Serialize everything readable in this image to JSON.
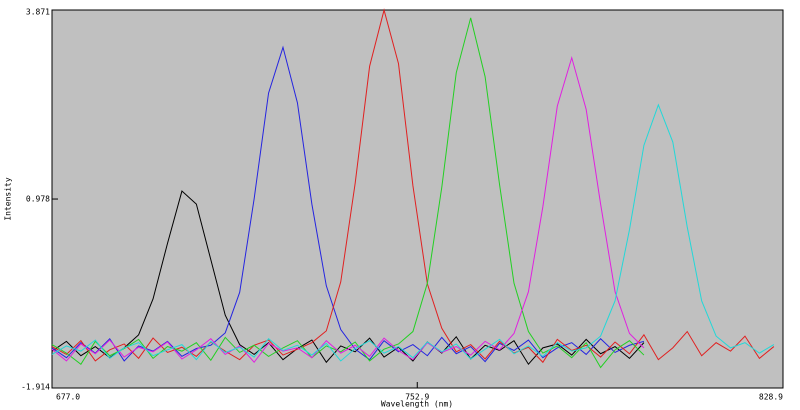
{
  "chart_data": {
    "type": "line",
    "xlabel": "Wavelength (nm)",
    "ylabel": "Intensity",
    "xlim": [
      677.0,
      828.9
    ],
    "ylim": [
      -1.914,
      3.871
    ],
    "xticks": [
      {
        "value": 677.0,
        "label": "677.0"
      },
      752.9,
      828.9
    ],
    "yticks": [
      -1.914,
      0.978,
      3.871
    ],
    "background": "#c0c0c0",
    "x": [
      677,
      680,
      683,
      686,
      689,
      692,
      695,
      698,
      701,
      704,
      707,
      710,
      713,
      716,
      719,
      722,
      725,
      728,
      731,
      734,
      737,
      740,
      743,
      746,
      749,
      752,
      755,
      758,
      761,
      764,
      767,
      770,
      773,
      776,
      779,
      782,
      785,
      788,
      791,
      794,
      797,
      800,
      803,
      806,
      809,
      812,
      815,
      818,
      821,
      824,
      827
    ],
    "series": [
      {
        "color": "#000000",
        "values": [
          -1.35,
          -1.2,
          -1.42,
          -1.28,
          -1.45,
          -1.3,
          -1.1,
          -0.55,
          0.3,
          1.1,
          0.9,
          0.05,
          -0.8,
          -1.25,
          -1.4,
          -1.22,
          -1.48,
          -1.31,
          -1.18,
          -1.52,
          -1.27,
          -1.36,
          -1.15,
          -1.44,
          -1.29,
          -1.5,
          -1.21,
          -1.38,
          -1.13,
          -1.47,
          -1.26,
          -1.34,
          -1.19,
          -1.55,
          -1.3,
          -1.24,
          -1.41,
          -1.17,
          -1.39,
          -1.28,
          -1.46,
          -1.22,
          null,
          null,
          null,
          null,
          null,
          null,
          null,
          null,
          null
        ]
      },
      {
        "color": "#2424e0",
        "values": [
          -1.3,
          -1.45,
          -1.22,
          -1.38,
          -1.16,
          -1.5,
          -1.27,
          -1.35,
          -1.2,
          -1.43,
          -1.31,
          -1.26,
          -1.07,
          -0.45,
          0.98,
          2.6,
          3.3,
          2.45,
          0.9,
          -0.35,
          -1.02,
          -1.32,
          -1.48,
          -1.19,
          -1.36,
          -1.25,
          -1.42,
          -1.14,
          -1.39,
          -1.28,
          -1.51,
          -1.23,
          -1.34,
          -1.18,
          -1.45,
          -1.3,
          -1.22,
          -1.4,
          -1.16,
          -1.37,
          -1.26,
          -1.2,
          null,
          null,
          null,
          null,
          null,
          null,
          null,
          null,
          null
        ]
      },
      {
        "color": "#e02020",
        "values": [
          -1.28,
          -1.4,
          -1.19,
          -1.5,
          -1.33,
          -1.24,
          -1.46,
          -1.15,
          -1.37,
          -1.29,
          -1.43,
          -1.21,
          -1.35,
          -1.48,
          -1.26,
          -1.18,
          -1.41,
          -1.32,
          -1.22,
          -1.04,
          -0.29,
          1.22,
          3.01,
          3.87,
          3.05,
          1.18,
          -0.32,
          -1.0,
          -1.36,
          -1.25,
          -1.47,
          -1.2,
          -1.38,
          -1.29,
          -1.52,
          -1.17,
          -1.34,
          -1.26,
          -1.44,
          -1.21,
          -1.39,
          -1.1,
          -1.48,
          -1.3,
          -1.05,
          -1.42,
          -1.22,
          -1.35,
          -1.12,
          -1.46,
          -1.28
        ]
      },
      {
        "color": "#22d022",
        "values": [
          -1.25,
          -1.38,
          -1.55,
          -1.2,
          -1.42,
          -1.31,
          -1.17,
          -1.46,
          -1.28,
          -1.35,
          -1.22,
          -1.49,
          -1.14,
          -1.37,
          -1.26,
          -1.43,
          -1.3,
          -1.19,
          -1.45,
          -1.27,
          -1.36,
          -1.21,
          -1.5,
          -1.32,
          -1.24,
          -1.05,
          -0.31,
          1.16,
          2.91,
          3.75,
          2.85,
          1.2,
          -0.31,
          -1.05,
          -1.38,
          -1.27,
          -1.45,
          -1.22,
          -1.6,
          -1.33,
          -1.19,
          -1.41,
          null,
          null,
          null,
          null,
          null,
          null,
          null,
          null,
          null
        ]
      },
      {
        "color": "#e020e0",
        "values": [
          -1.32,
          -1.5,
          -1.24,
          -1.39,
          -1.18,
          -1.44,
          -1.29,
          -1.36,
          -1.21,
          -1.47,
          -1.33,
          -1.16,
          -1.4,
          -1.27,
          -1.52,
          -1.23,
          -1.35,
          -1.3,
          -1.45,
          -1.19,
          -1.38,
          -1.26,
          -1.43,
          -1.15,
          -1.34,
          -1.48,
          -1.22,
          -1.37,
          -1.28,
          -1.41,
          -1.2,
          -1.33,
          -1.08,
          -0.44,
          0.86,
          2.4,
          3.14,
          2.35,
          0.9,
          -0.44,
          -1.08,
          -1.3,
          null,
          null,
          null,
          null,
          null,
          null,
          null,
          null,
          null
        ]
      },
      {
        "color": "#22d8d8",
        "values": [
          -1.4,
          -1.27,
          -1.35,
          -1.18,
          -1.46,
          -1.3,
          -1.22,
          -1.42,
          -1.33,
          -1.25,
          -1.48,
          -1.2,
          -1.37,
          -1.29,
          -1.44,
          -1.16,
          -1.34,
          -1.26,
          -1.41,
          -1.23,
          -1.5,
          -1.31,
          -1.19,
          -1.38,
          -1.28,
          -1.45,
          -1.21,
          -1.36,
          -1.24,
          -1.47,
          -1.32,
          -1.17,
          -1.39,
          -1.27,
          -1.43,
          -1.22,
          -1.35,
          -1.3,
          -1.12,
          -0.58,
          0.51,
          1.8,
          2.42,
          1.85,
          0.55,
          -0.58,
          -1.12,
          -1.3,
          -1.22,
          -1.38,
          -1.25
        ]
      }
    ]
  }
}
